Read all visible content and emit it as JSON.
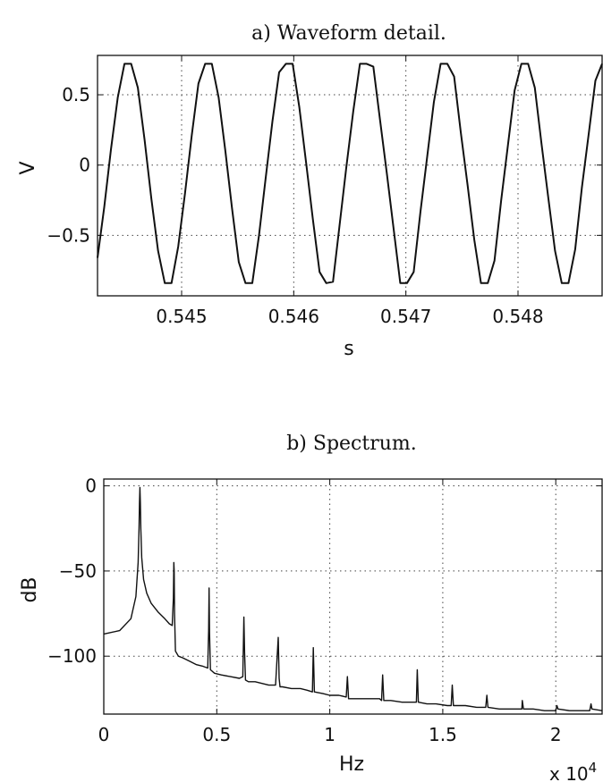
{
  "chart_data": [
    {
      "type": "line",
      "title": "a) Waveform detail.",
      "xlabel": "s",
      "ylabel": "V",
      "xlim": [
        0.54425,
        0.54875
      ],
      "ylim": [
        -0.93,
        0.78
      ],
      "xticks": [
        0.545,
        0.546,
        0.547,
        0.548
      ],
      "xtick_labels": [
        "0.545",
        "0.546",
        "0.547",
        "0.548"
      ],
      "yticks": [
        0.5,
        0,
        -0.5
      ],
      "ytick_labels": [
        "0.5",
        "0",
        "−0.5"
      ],
      "grid": true,
      "series": [
        {
          "x": [
            0.54425,
            0.54431,
            0.54437,
            0.54443,
            0.54449,
            0.54455,
            0.54461,
            0.54467,
            0.54473,
            0.54479,
            0.54485,
            0.54491,
            0.54497,
            0.54503,
            0.54509,
            0.54515,
            0.54521,
            0.54527,
            0.54533,
            0.54539,
            0.54545,
            0.54551,
            0.54557,
            0.54563,
            0.54569,
            0.54575,
            0.54581,
            0.54587,
            0.54593,
            0.54599,
            0.54605,
            0.54611,
            0.54617,
            0.54623,
            0.54629,
            0.54635,
            0.54641,
            0.54647,
            0.54653,
            0.54659,
            0.54665,
            0.54671,
            0.54677,
            0.54683,
            0.54689,
            0.54695,
            0.54701,
            0.54707,
            0.54713,
            0.54719,
            0.54725,
            0.54731,
            0.54737,
            0.54743,
            0.54749,
            0.54755,
            0.54761,
            0.54767,
            0.54773,
            0.54779,
            0.54785,
            0.54791,
            0.54797,
            0.54803,
            0.54809,
            0.54815,
            0.54821,
            0.54827,
            0.54833,
            0.54839,
            0.54845,
            0.54851,
            0.54857,
            0.54863,
            0.54869,
            0.54875
          ],
          "y": [
            -0.66,
            -0.3,
            0.11,
            0.48,
            0.72,
            0.72,
            0.55,
            0.18,
            -0.24,
            -0.61,
            -0.84,
            -0.84,
            -0.58,
            -0.2,
            0.21,
            0.58,
            0.72,
            0.72,
            0.48,
            0.1,
            -0.31,
            -0.69,
            -0.84,
            -0.84,
            -0.5,
            -0.09,
            0.31,
            0.66,
            0.72,
            0.72,
            0.41,
            0.02,
            -0.38,
            -0.76,
            -0.84,
            -0.83,
            -0.42,
            -0.01,
            0.38,
            0.72,
            0.72,
            0.7,
            0.32,
            -0.06,
            -0.45,
            -0.84,
            -0.84,
            -0.76,
            -0.33,
            0.06,
            0.45,
            0.72,
            0.72,
            0.63,
            0.23,
            -0.14,
            -0.53,
            -0.84,
            -0.84,
            -0.68,
            -0.25,
            0.14,
            0.53,
            0.72,
            0.72,
            0.55,
            0.15,
            -0.23,
            -0.61,
            -0.84,
            -0.84,
            -0.6,
            -0.16,
            0.22,
            0.6,
            0.72
          ]
        }
      ]
    },
    {
      "type": "line",
      "title": "b) Spectrum.",
      "xlabel": "Hz",
      "ylabel": "dB",
      "x_multiplier": "x 10",
      "x_multiplier_exp": "4",
      "xlim": [
        0,
        22050
      ],
      "ylim": [
        -134,
        4
      ],
      "xticks": [
        0,
        5000,
        10000,
        15000,
        20000
      ],
      "xtick_labels": [
        "0",
        "0.5",
        "1",
        "1.5",
        "2"
      ],
      "yticks": [
        0,
        -50,
        -100
      ],
      "ytick_labels": [
        "0",
        "−50",
        "−100"
      ],
      "grid": true,
      "series": [
        {
          "x": [
            0,
            700,
            1200,
            1420,
            1520,
            1560,
            1580,
            1600,
            1620,
            1640,
            1680,
            1760,
            1900,
            2100,
            2400,
            2700,
            2900,
            3030,
            3080,
            3100,
            3115,
            3130,
            3170,
            3300,
            3500,
            3800,
            4100,
            4400,
            4600,
            4640,
            4660,
            4680,
            4720,
            4900,
            5200,
            5600,
            6000,
            6150,
            6200,
            6230,
            6270,
            6400,
            6700,
            7000,
            7300,
            7600,
            7720,
            7760,
            7800,
            7900,
            8300,
            8700,
            9000,
            9230,
            9270,
            9320,
            9700,
            10000,
            10400,
            10730,
            10780,
            10830,
            11200,
            11700,
            12200,
            12290,
            12340,
            12390,
            12700,
            13200,
            13700,
            13830,
            13870,
            13920,
            14300,
            14700,
            15200,
            15370,
            15420,
            15470,
            16000,
            16500,
            16900,
            16950,
            17000,
            17500,
            18000,
            18500,
            18520,
            18570,
            19000,
            19500,
            20000,
            20050,
            20100,
            20600,
            21000,
            21500,
            21560,
            21600,
            22050
          ],
          "y": [
            -87,
            -85,
            -78,
            -65,
            -45,
            -25,
            -10,
            -1,
            -10,
            -25,
            -42,
            -55,
            -63,
            -69,
            -74,
            -78,
            -81,
            -82,
            -66,
            -45,
            -50,
            -75,
            -97,
            -100,
            -101,
            -103,
            -105,
            -106,
            -107,
            -85,
            -60,
            -86,
            -108,
            -110,
            -111,
            -112,
            -113,
            -112,
            -77,
            -98,
            -114,
            -115,
            -115,
            -116,
            -117,
            -117,
            -89,
            -113,
            -118,
            -118,
            -119,
            -119,
            -120,
            -121,
            -95,
            -121,
            -122,
            -123,
            -123,
            -124,
            -112,
            -125,
            -125,
            -125,
            -125,
            -126,
            -111,
            -126,
            -126,
            -127,
            -127,
            -127,
            -108,
            -127,
            -128,
            -128,
            -129,
            -129,
            -117,
            -129,
            -129,
            -130,
            -130,
            -123,
            -130,
            -131,
            -131,
            -131,
            -126,
            -131,
            -131,
            -132,
            -132,
            -129,
            -131,
            -132,
            -132,
            -132,
            -128,
            -131,
            -132
          ]
        }
      ]
    }
  ]
}
